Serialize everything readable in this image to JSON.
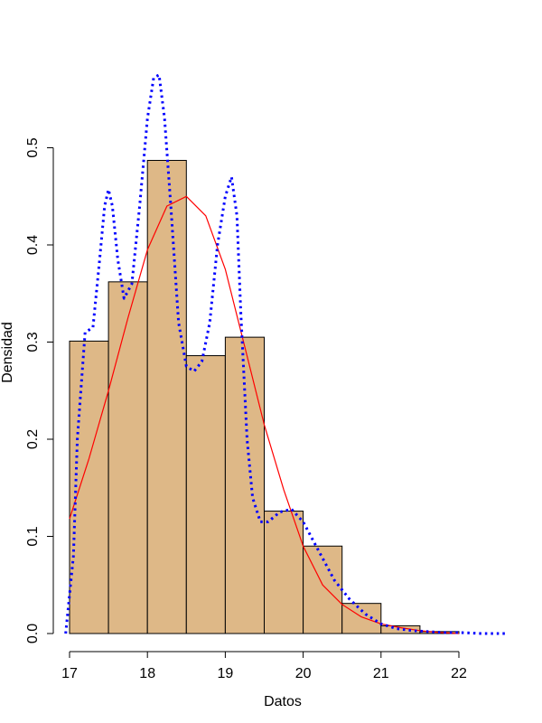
{
  "chart_data": {
    "type": "bar",
    "subtype": "histogram-with-density",
    "xlabel": "Datos",
    "ylabel": "Densidad",
    "xlim": [
      16.9,
      22.6
    ],
    "ylim": [
      0,
      0.55
    ],
    "x_ticks": [
      17,
      18,
      19,
      20,
      21,
      22
    ],
    "y_ticks": [
      0.0,
      0.1,
      0.2,
      0.3,
      0.4,
      0.5
    ],
    "y_tick_labels": [
      "0.0",
      "0.1",
      "0.2",
      "0.3",
      "0.4",
      "0.5"
    ],
    "bar_color": "#deb887",
    "bins": [
      {
        "from": 17.0,
        "to": 17.5,
        "density": 0.301
      },
      {
        "from": 17.5,
        "to": 18.0,
        "density": 0.362
      },
      {
        "from": 18.0,
        "to": 18.5,
        "density": 0.487
      },
      {
        "from": 18.5,
        "to": 19.0,
        "density": 0.286
      },
      {
        "from": 19.0,
        "to": 19.5,
        "density": 0.305
      },
      {
        "from": 19.5,
        "to": 20.0,
        "density": 0.126
      },
      {
        "from": 20.0,
        "to": 20.5,
        "density": 0.09
      },
      {
        "from": 20.5,
        "to": 21.0,
        "density": 0.031
      },
      {
        "from": 21.0,
        "to": 21.5,
        "density": 0.008
      },
      {
        "from": 21.5,
        "to": 22.0,
        "density": 0.002
      }
    ],
    "series": [
      {
        "color": "#ff0000",
        "style": "solid",
        "x": [
          17.0,
          17.25,
          17.5,
          17.75,
          18.0,
          18.25,
          18.5,
          18.75,
          19.0,
          19.25,
          19.5,
          19.75,
          20.0,
          20.25,
          20.5,
          20.75,
          21.0,
          21.25,
          21.5,
          21.75,
          22.0
        ],
        "y": [
          0.118,
          0.18,
          0.25,
          0.325,
          0.395,
          0.44,
          0.45,
          0.43,
          0.375,
          0.295,
          0.215,
          0.148,
          0.09,
          0.05,
          0.03,
          0.017,
          0.01,
          0.006,
          0.003,
          0.001,
          0.0
        ]
      },
      {
        "color": "#0000ff",
        "style": "dotted",
        "x": [
          16.95,
          17.05,
          17.1,
          17.2,
          17.3,
          17.38,
          17.45,
          17.5,
          17.55,
          17.62,
          17.7,
          17.8,
          17.9,
          18.0,
          18.08,
          18.15,
          18.22,
          18.3,
          18.4,
          18.5,
          18.6,
          18.7,
          18.8,
          18.9,
          19.0,
          19.08,
          19.15,
          19.2,
          19.28,
          19.35,
          19.45,
          19.55,
          19.7,
          19.85,
          20.0,
          20.2,
          20.4,
          20.6,
          20.8,
          21.0,
          21.2,
          21.4,
          21.6,
          21.8,
          22.0,
          22.3,
          22.6
        ],
        "y": [
          0.0,
          0.08,
          0.2,
          0.31,
          0.315,
          0.38,
          0.44,
          0.457,
          0.44,
          0.385,
          0.345,
          0.36,
          0.44,
          0.53,
          0.572,
          0.575,
          0.53,
          0.44,
          0.32,
          0.275,
          0.27,
          0.28,
          0.32,
          0.4,
          0.45,
          0.47,
          0.43,
          0.33,
          0.2,
          0.14,
          0.115,
          0.115,
          0.125,
          0.128,
          0.115,
          0.085,
          0.055,
          0.035,
          0.02,
          0.01,
          0.005,
          0.003,
          0.002,
          0.001,
          0.001,
          0.0,
          0.0
        ]
      }
    ]
  }
}
